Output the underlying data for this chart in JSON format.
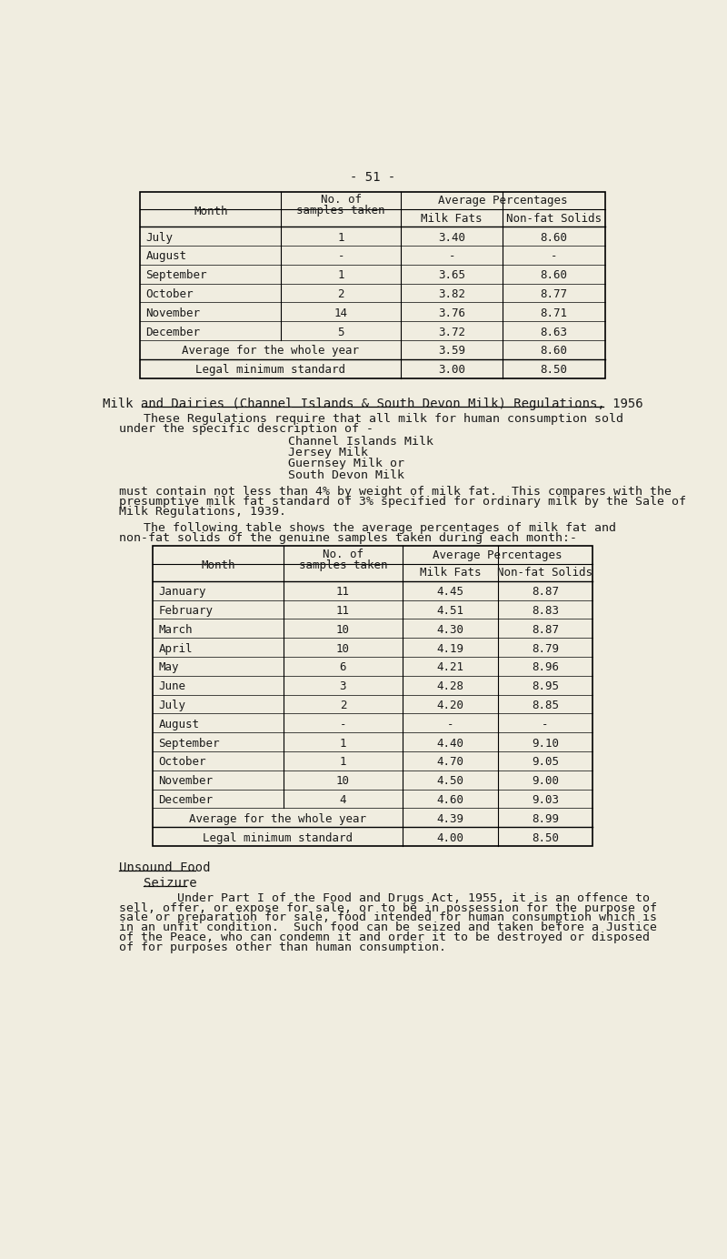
{
  "page_number": "- 51 -",
  "bg_color": "#f0ede0",
  "text_color": "#2a2a2a",
  "table1": {
    "rows": [
      [
        "July",
        "1",
        "3.40",
        "8.60"
      ],
      [
        "August",
        "-",
        "-",
        "-"
      ],
      [
        "September",
        "1",
        "3.65",
        "8.60"
      ],
      [
        "October",
        "2",
        "3.82",
        "8.77"
      ],
      [
        "November",
        "14",
        "3.76",
        "8.71"
      ],
      [
        "December",
        "5",
        "3.72",
        "8.63"
      ]
    ],
    "avg_row": [
      "Average for the whole year",
      "3.59",
      "8.60"
    ],
    "legal_row": [
      "Legal minimum standard",
      "3.00",
      "8.50"
    ]
  },
  "section_heading": "Milk and Dairies (Channel Islands & South Devon Milk) Regulations, 1956",
  "para1_line1": "These Regulations require that all milk for human consumption sold",
  "para1_line2": "under the specific description of -",
  "list_items": [
    "Channel Islands Milk",
    "Jersey Milk",
    "Guernsey Milk or",
    "South Devon Milk"
  ],
  "para2": [
    "must contain not less than 4% by weight of milk fat.  This compares with the",
    "presumptive milk fat standard of 3% specified for ordinary milk by the Sale of",
    "Milk Regulations, 1939."
  ],
  "para3_line1": "The following table shows the average percentages of milk fat and",
  "para3_line2": "non-fat solids of the genuine samples taken during each month:-",
  "table2": {
    "rows": [
      [
        "January",
        "11",
        "4.45",
        "8.87"
      ],
      [
        "February",
        "11",
        "4.51",
        "8.83"
      ],
      [
        "March",
        "10",
        "4.30",
        "8.87"
      ],
      [
        "April",
        "10",
        "4.19",
        "8.79"
      ],
      [
        "May",
        "6",
        "4.21",
        "8.96"
      ],
      [
        "June",
        "3",
        "4.28",
        "8.95"
      ],
      [
        "July",
        "2",
        "4.20",
        "8.85"
      ],
      [
        "August",
        "-",
        "-",
        "-"
      ],
      [
        "September",
        "1",
        "4.40",
        "9.10"
      ],
      [
        "October",
        "1",
        "4.70",
        "9.05"
      ],
      [
        "November",
        "10",
        "4.50",
        "9.00"
      ],
      [
        "December",
        "4",
        "4.60",
        "9.03"
      ]
    ],
    "avg_row": [
      "Average for the whole year",
      "4.39",
      "8.99"
    ],
    "legal_row": [
      "Legal minimum standard",
      "4.00",
      "8.50"
    ]
  },
  "unsound_heading": "Unsound Food",
  "seizure_heading": "Seizure",
  "para4": [
    "        Under Part I of the Food and Drugs Act, 1955, it is an offence to",
    "sell, offer, or expose for sale, or to be in possession for the purpose of",
    "sale or preparation for sale, food intended for human consumption which is",
    "in an unfit condition.  Such food can be seized and taken before a Justice",
    "of the Peace, who can condemn it and order it to be destroyed or disposed",
    "of for purposes other than human consumption."
  ]
}
